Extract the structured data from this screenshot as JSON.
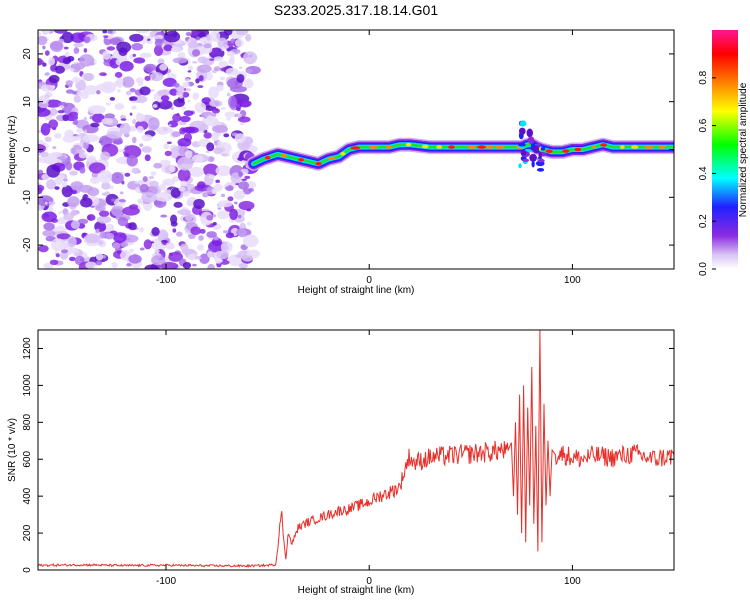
{
  "title": "S233.2025.317.18.14.G01",
  "colors": {
    "snr_line": "#e8302a",
    "axis": "#000000",
    "noise": "#7a1ee6",
    "ridge_core": "#ff2010",
    "colormap": [
      "#ffffff",
      "#e6d6f7",
      "#8a2be2",
      "#2222ff",
      "#00ffff",
      "#00ff00",
      "#ffff00",
      "#ff7f00",
      "#ff0000",
      "#ff1493"
    ]
  },
  "chart_data": [
    {
      "type": "heatmap",
      "title": "S233.2025.317.18.14.G01",
      "xlabel": "Height of straight line (km)",
      "ylabel": "Frequency (Hz)",
      "xlim": [
        -163,
        150
      ],
      "ylim": [
        -25,
        25
      ],
      "xticks": [
        -100,
        0,
        100
      ],
      "xtick_labels": [
        "-100",
        "0",
        "100"
      ],
      "yticks": [
        -20,
        -10,
        0,
        10,
        20
      ],
      "ytick_labels": [
        "-20",
        "-10",
        "0",
        "10",
        "20"
      ],
      "noise_region_x": [
        -163,
        -57
      ],
      "ridge": {
        "x": [
          -57,
          -52,
          -45,
          -40,
          -35,
          -30,
          -25,
          -20,
          -15,
          -10,
          -5,
          0,
          5,
          10,
          15,
          20,
          30,
          40,
          50,
          60,
          65,
          70,
          75,
          78,
          80,
          82,
          85,
          90,
          95,
          100,
          105,
          110,
          115,
          120,
          130,
          140,
          150
        ],
        "y": [
          -3,
          -2,
          -1,
          -1.5,
          -2,
          -2.5,
          -3,
          -2,
          -1.5,
          0,
          0.5,
          0.5,
          0.5,
          0.5,
          1,
          1,
          0.5,
          0.5,
          0.5,
          0.5,
          0.5,
          0.5,
          0.5,
          1,
          1,
          0.5,
          0,
          -0.5,
          -0.5,
          0,
          0,
          0.5,
          1,
          0.5,
          0.5,
          0.5,
          0.5
        ]
      },
      "colorbar": {
        "label": "Normalized spectral amplitude",
        "range": [
          0,
          1
        ],
        "ticks": [
          0,
          0.2,
          0.4,
          0.6,
          0.8
        ],
        "tick_labels": [
          "0.0",
          "0.2",
          "0.4",
          "0.6",
          "0.8"
        ]
      }
    },
    {
      "type": "line",
      "xlabel": "Height of straight line (km)",
      "ylabel": "SNR (10 * v/v)",
      "xlim": [
        -163,
        150
      ],
      "ylim": [
        0,
        1300
      ],
      "xticks": [
        -100,
        0,
        100
      ],
      "xtick_labels": [
        "-100",
        "0",
        "100"
      ],
      "yticks": [
        0,
        200,
        400,
        600,
        800,
        1000,
        1200
      ],
      "ytick_labels": [
        "0",
        "200",
        "400",
        "600",
        "800",
        "1000",
        "1200"
      ],
      "series": [
        {
          "name": "SNR",
          "x": [
            -163,
            -140,
            -120,
            -100,
            -80,
            -60,
            -50,
            -46,
            -45,
            -44,
            -43,
            -42,
            -41,
            -40,
            -38,
            -35,
            -30,
            -25,
            -20,
            -15,
            -10,
            -5,
            0,
            5,
            10,
            15,
            18,
            20,
            22,
            25,
            30,
            40,
            50,
            60,
            65,
            68,
            70,
            71,
            72,
            73,
            74,
            75,
            76,
            77,
            78,
            79,
            80,
            81,
            82,
            83,
            84,
            85,
            86,
            87,
            88,
            89,
            90,
            92,
            95,
            100,
            105,
            110,
            120,
            130,
            140,
            150
          ],
          "y": [
            25,
            28,
            24,
            26,
            23,
            22,
            25,
            30,
            120,
            250,
            300,
            150,
            60,
            200,
            140,
            230,
            260,
            280,
            300,
            320,
            330,
            350,
            370,
            400,
            420,
            450,
            560,
            620,
            580,
            590,
            610,
            620,
            630,
            640,
            650,
            640,
            690,
            400,
            800,
            300,
            950,
            200,
            1000,
            150,
            880,
            350,
            1100,
            250,
            780,
            100,
            1300,
            150,
            900,
            350,
            700,
            400,
            650,
            620,
            630,
            610,
            600,
            620,
            610,
            630,
            600,
            620
          ]
        }
      ]
    }
  ]
}
